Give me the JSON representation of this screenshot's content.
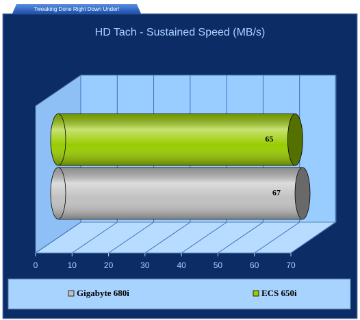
{
  "header": {
    "tagline": "Tweaking Done Right Down Under!"
  },
  "chart_data": {
    "type": "bar",
    "orientation": "horizontal",
    "title": "HD Tach - Sustained Speed (MB/s)",
    "series": [
      {
        "name": "Gigabyte 680i",
        "color": "#c0c0c0",
        "values": [
          67
        ]
      },
      {
        "name": "ECS 650i",
        "color": "#99cc00",
        "values": [
          65
        ]
      }
    ],
    "xlim": [
      0,
      70
    ],
    "xticks": [
      0,
      10,
      20,
      30,
      40,
      50,
      60,
      70
    ],
    "grid": true,
    "legend": "bottom"
  }
}
